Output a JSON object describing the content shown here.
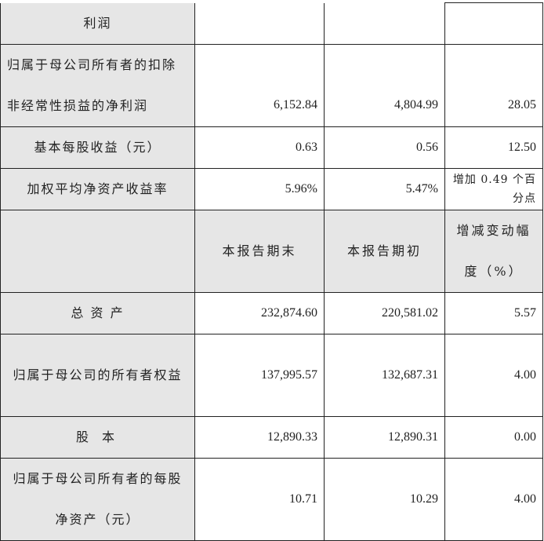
{
  "header": {
    "col2": "本报告期末",
    "col3": "本报告期初",
    "col4": "增减变动幅度（%）"
  },
  "rows": [
    {
      "label": "利润",
      "v1": "",
      "v2": "",
      "v3": ""
    },
    {
      "label": "归属于母公司所有者的扣除非经常性损益的净利润",
      "v1": "6,152.84",
      "v2": "4,804.99",
      "v3": "28.05"
    },
    {
      "label": "基本每股收益（元）",
      "v1": "0.63",
      "v2": "0.56",
      "v3": "12.50"
    },
    {
      "label": "加权平均净资产收益率",
      "v1": "5.96%",
      "v2": "5.47%",
      "v3": "增加 0.49 个百分点"
    },
    {
      "label": "总 资 产",
      "v1": "232,874.60",
      "v2": "220,581.02",
      "v3": "5.57"
    },
    {
      "label": "归属于母公司的所有者权益",
      "v1": "137,995.57",
      "v2": "132,687.31",
      "v3": "4.00"
    },
    {
      "label": "股 本",
      "v1": "12,890.33",
      "v2": "12,890.31",
      "v3": "0.00"
    },
    {
      "label": "归属于母公司所有者的每股净资产（元）",
      "v1": "10.71",
      "v2": "10.29",
      "v3": "4.00"
    }
  ]
}
